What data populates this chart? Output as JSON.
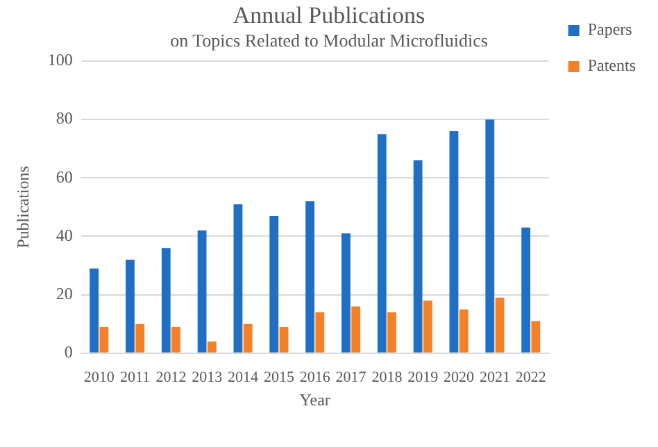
{
  "chart_data": {
    "type": "bar",
    "title": "Annual Publications",
    "subtitle": "on Topics Related to Modular Microfluidics",
    "xlabel": "Year",
    "ylabel": "Publications",
    "categories": [
      "2010",
      "2011",
      "2012",
      "2013",
      "2014",
      "2015",
      "2016",
      "2017",
      "2018",
      "2019",
      "2020",
      "2021",
      "2022"
    ],
    "series": [
      {
        "name": "Papers",
        "color": "#1f6fc6",
        "values": [
          29,
          32,
          36,
          42,
          51,
          47,
          52,
          41,
          75,
          66,
          76,
          80,
          43
        ]
      },
      {
        "name": "Patents",
        "color": "#f68026",
        "values": [
          9,
          10,
          9,
          4,
          10,
          9,
          14,
          16,
          14,
          18,
          15,
          19,
          11
        ]
      }
    ],
    "ylim": [
      0,
      100
    ],
    "yticks": [
      0,
      20,
      40,
      60,
      80,
      100
    ],
    "grid": "y",
    "legend": "top right"
  }
}
